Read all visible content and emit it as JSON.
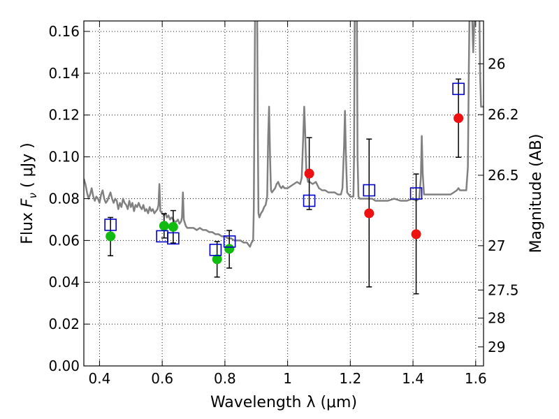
{
  "chart_data": {
    "type": "scatter",
    "xlabel": "Wavelength  λ (μm)",
    "ylabel": {
      "prefix": "Flux  ",
      "symbol": "F",
      "subscript": "ν",
      "unit": "  ( μJy )"
    },
    "y2label": "Magnitude (AB)",
    "xlim": [
      0.35,
      1.625
    ],
    "ylim": [
      0.0,
      0.165
    ],
    "x_ticks": [
      0.4,
      0.6,
      0.8,
      1.0,
      1.2,
      1.4,
      1.6
    ],
    "x_tick_labels": [
      "0.4",
      "0.6",
      "0.8",
      "1",
      "1.2",
      "1.4",
      "1.6"
    ],
    "y_ticks": [
      0.0,
      0.02,
      0.04,
      0.06,
      0.08,
      0.1,
      0.12,
      0.14,
      0.16
    ],
    "y_tick_labels": [
      "0.00",
      "0.02",
      "0.04",
      "0.06",
      "0.08",
      "0.10",
      "0.12",
      "0.14",
      "0.16"
    ],
    "y2_ticks": [
      {
        "label": "26",
        "flux": 0.1445
      },
      {
        "label": "26.2",
        "flux": 0.1202
      },
      {
        "label": "26.5",
        "flux": 0.0912
      },
      {
        "label": "27",
        "flux": 0.0575
      },
      {
        "label": "27.5",
        "flux": 0.0363
      },
      {
        "label": "28",
        "flux": 0.0229
      },
      {
        "label": "29",
        "flux": 0.0091
      }
    ],
    "grid": true,
    "colors": {
      "spectrum": "#808080",
      "observed_hst": "#11bb11",
      "observed_ir": "#ee1111",
      "model": "#0000cc",
      "error_bar": "#000000"
    },
    "series": [
      {
        "kind": "spectrum",
        "points": [
          [
            0.35,
            0.0895
          ],
          [
            0.355,
            0.087
          ],
          [
            0.36,
            0.083
          ],
          [
            0.365,
            0.08
          ],
          [
            0.37,
            0.082
          ],
          [
            0.375,
            0.085
          ],
          [
            0.38,
            0.081
          ],
          [
            0.385,
            0.079
          ],
          [
            0.39,
            0.081
          ],
          [
            0.395,
            0.08
          ],
          [
            0.4,
            0.078
          ],
          [
            0.405,
            0.082
          ],
          [
            0.41,
            0.084
          ],
          [
            0.415,
            0.08
          ],
          [
            0.42,
            0.078
          ],
          [
            0.425,
            0.079
          ],
          [
            0.43,
            0.081
          ],
          [
            0.435,
            0.083
          ],
          [
            0.44,
            0.08
          ],
          [
            0.445,
            0.078
          ],
          [
            0.45,
            0.08
          ],
          [
            0.455,
            0.079
          ],
          [
            0.46,
            0.075
          ],
          [
            0.465,
            0.078
          ],
          [
            0.47,
            0.076
          ],
          [
            0.475,
            0.08
          ],
          [
            0.48,
            0.078
          ],
          [
            0.485,
            0.077
          ],
          [
            0.49,
            0.075
          ],
          [
            0.495,
            0.079
          ],
          [
            0.5,
            0.076
          ],
          [
            0.505,
            0.078
          ],
          [
            0.51,
            0.074
          ],
          [
            0.515,
            0.077
          ],
          [
            0.52,
            0.076
          ],
          [
            0.525,
            0.078
          ],
          [
            0.53,
            0.076
          ],
          [
            0.535,
            0.075
          ],
          [
            0.54,
            0.077
          ],
          [
            0.545,
            0.074
          ],
          [
            0.55,
            0.075
          ],
          [
            0.555,
            0.073
          ],
          [
            0.56,
            0.076
          ],
          [
            0.565,
            0.074
          ],
          [
            0.57,
            0.075
          ],
          [
            0.575,
            0.073
          ],
          [
            0.58,
            0.074
          ],
          [
            0.585,
            0.075
          ],
          [
            0.588,
            0.077
          ],
          [
            0.591,
            0.087
          ],
          [
            0.594,
            0.074
          ],
          [
            0.6,
            0.073
          ],
          [
            0.605,
            0.072
          ],
          [
            0.61,
            0.073
          ],
          [
            0.615,
            0.071
          ],
          [
            0.62,
            0.072
          ],
          [
            0.625,
            0.07
          ],
          [
            0.63,
            0.071
          ],
          [
            0.635,
            0.07
          ],
          [
            0.64,
            0.069
          ],
          [
            0.645,
            0.069
          ],
          [
            0.65,
            0.07
          ],
          [
            0.655,
            0.068
          ],
          [
            0.66,
            0.069
          ],
          [
            0.663,
            0.071
          ],
          [
            0.666,
            0.083
          ],
          [
            0.669,
            0.07
          ],
          [
            0.675,
            0.067
          ],
          [
            0.68,
            0.066
          ],
          [
            0.69,
            0.066
          ],
          [
            0.7,
            0.066
          ],
          [
            0.71,
            0.065
          ],
          [
            0.72,
            0.066
          ],
          [
            0.73,
            0.065
          ],
          [
            0.74,
            0.065
          ],
          [
            0.75,
            0.064
          ],
          [
            0.76,
            0.064
          ],
          [
            0.77,
            0.063
          ],
          [
            0.78,
            0.063
          ],
          [
            0.79,
            0.062
          ],
          [
            0.8,
            0.062
          ],
          [
            0.81,
            0.061
          ],
          [
            0.82,
            0.061
          ],
          [
            0.83,
            0.06
          ],
          [
            0.84,
            0.06
          ],
          [
            0.85,
            0.06
          ],
          [
            0.86,
            0.059
          ],
          [
            0.87,
            0.059
          ],
          [
            0.875,
            0.058
          ],
          [
            0.88,
            0.057
          ],
          [
            0.885,
            0.059
          ],
          [
            0.89,
            0.06
          ],
          [
            0.892,
            0.075
          ],
          [
            0.894,
            0.12
          ],
          [
            0.896,
            0.166
          ],
          [
            0.903,
            0.166
          ],
          [
            0.905,
            0.11
          ],
          [
            0.907,
            0.073
          ],
          [
            0.91,
            0.071
          ],
          [
            0.915,
            0.073
          ],
          [
            0.92,
            0.074
          ],
          [
            0.925,
            0.076
          ],
          [
            0.93,
            0.077
          ],
          [
            0.935,
            0.081
          ],
          [
            0.938,
            0.11
          ],
          [
            0.941,
            0.124
          ],
          [
            0.944,
            0.1
          ],
          [
            0.947,
            0.084
          ],
          [
            0.95,
            0.083
          ],
          [
            0.955,
            0.084
          ],
          [
            0.96,
            0.085
          ],
          [
            0.965,
            0.087
          ],
          [
            0.97,
            0.088
          ],
          [
            0.975,
            0.086
          ],
          [
            0.98,
            0.085
          ],
          [
            0.985,
            0.086
          ],
          [
            0.99,
            0.085
          ],
          [
            1.0,
            0.085
          ],
          [
            1.01,
            0.086
          ],
          [
            1.02,
            0.087
          ],
          [
            1.03,
            0.088
          ],
          [
            1.04,
            0.087
          ],
          [
            1.045,
            0.09
          ],
          [
            1.05,
            0.11
          ],
          [
            1.053,
            0.124
          ],
          [
            1.056,
            0.112
          ],
          [
            1.06,
            0.092
          ],
          [
            1.065,
            0.088
          ],
          [
            1.07,
            0.088
          ],
          [
            1.08,
            0.087
          ],
          [
            1.09,
            0.088
          ],
          [
            1.1,
            0.085
          ],
          [
            1.11,
            0.084
          ],
          [
            1.12,
            0.084
          ],
          [
            1.13,
            0.083
          ],
          [
            1.14,
            0.083
          ],
          [
            1.15,
            0.083
          ],
          [
            1.16,
            0.082
          ],
          [
            1.17,
            0.082
          ],
          [
            1.175,
            0.085
          ],
          [
            1.18,
            0.105
          ],
          [
            1.183,
            0.122
          ],
          [
            1.186,
            0.1
          ],
          [
            1.19,
            0.083
          ],
          [
            1.2,
            0.081
          ],
          [
            1.21,
            0.081
          ],
          [
            1.212,
            0.1
          ],
          [
            1.214,
            0.166
          ],
          [
            1.221,
            0.166
          ],
          [
            1.223,
            0.1
          ],
          [
            1.226,
            0.081
          ],
          [
            1.23,
            0.08
          ],
          [
            1.24,
            0.08
          ],
          [
            1.25,
            0.08
          ],
          [
            1.26,
            0.08
          ],
          [
            1.27,
            0.08
          ],
          [
            1.28,
            0.079
          ],
          [
            1.3,
            0.079
          ],
          [
            1.32,
            0.079
          ],
          [
            1.34,
            0.08
          ],
          [
            1.36,
            0.079
          ],
          [
            1.38,
            0.079
          ],
          [
            1.4,
            0.08
          ],
          [
            1.41,
            0.079
          ],
          [
            1.42,
            0.08
          ],
          [
            1.425,
            0.09
          ],
          [
            1.428,
            0.11
          ],
          [
            1.431,
            0.092
          ],
          [
            1.435,
            0.082
          ],
          [
            1.44,
            0.082
          ],
          [
            1.46,
            0.082
          ],
          [
            1.48,
            0.082
          ],
          [
            1.5,
            0.082
          ],
          [
            1.52,
            0.082
          ],
          [
            1.53,
            0.083
          ],
          [
            1.54,
            0.084
          ],
          [
            1.545,
            0.085
          ],
          [
            1.55,
            0.084
          ],
          [
            1.56,
            0.084
          ],
          [
            1.57,
            0.084
          ],
          [
            1.575,
            0.095
          ],
          [
            1.578,
            0.14
          ],
          [
            1.58,
            0.166
          ],
          [
            1.589,
            0.166
          ],
          [
            1.592,
            0.15
          ],
          [
            1.596,
            0.166
          ],
          [
            1.612,
            0.166
          ],
          [
            1.614,
            0.14
          ],
          [
            1.617,
            0.124
          ],
          [
            1.625,
            0.124
          ]
        ]
      },
      {
        "kind": "observed_hst",
        "points": [
          {
            "x": 0.435,
            "y": 0.062,
            "lo": 0.0527,
            "hi": 0.071
          },
          {
            "x": 0.606,
            "y": 0.067,
            "lo": 0.0612,
            "hi": 0.0728
          },
          {
            "x": 0.635,
            "y": 0.0665,
            "lo": 0.0588,
            "hi": 0.0743
          },
          {
            "x": 0.775,
            "y": 0.051,
            "lo": 0.0425,
            "hi": 0.0595
          },
          {
            "x": 0.814,
            "y": 0.056,
            "lo": 0.0468,
            "hi": 0.0648
          }
        ]
      },
      {
        "kind": "observed_ir",
        "points": [
          {
            "x": 1.069,
            "y": 0.092,
            "lo": 0.0748,
            "hi": 0.1092
          },
          {
            "x": 1.26,
            "y": 0.073,
            "lo": 0.0378,
            "hi": 0.1085
          },
          {
            "x": 1.41,
            "y": 0.063,
            "lo": 0.0345,
            "hi": 0.0918
          },
          {
            "x": 1.545,
            "y": 0.1185,
            "lo": 0.0998,
            "hi": 0.1372
          }
        ]
      },
      {
        "kind": "model",
        "points": [
          {
            "x": 0.435,
            "y": 0.0675
          },
          {
            "x": 0.6,
            "y": 0.062
          },
          {
            "x": 0.635,
            "y": 0.061
          },
          {
            "x": 0.77,
            "y": 0.0555
          },
          {
            "x": 0.815,
            "y": 0.0595
          },
          {
            "x": 1.069,
            "y": 0.079
          },
          {
            "x": 1.26,
            "y": 0.084
          },
          {
            "x": 1.41,
            "y": 0.0825
          },
          {
            "x": 1.545,
            "y": 0.1325
          }
        ]
      }
    ]
  }
}
